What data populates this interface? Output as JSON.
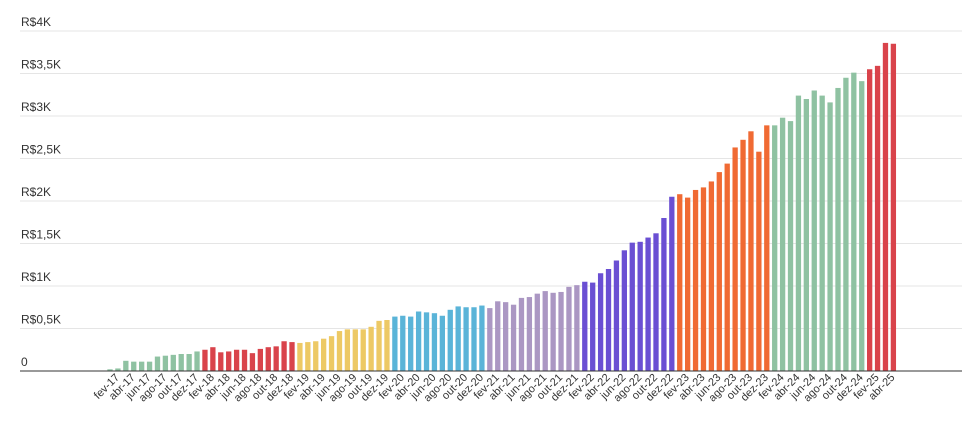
{
  "chart_data": {
    "type": "bar",
    "title": "",
    "xlabel": "",
    "ylabel": "",
    "ylim": [
      0,
      4000
    ],
    "grid": true,
    "legend": "none",
    "yticks": [
      {
        "value": 0,
        "label": "0"
      },
      {
        "value": 500,
        "label": "R$0,5K"
      },
      {
        "value": 1000,
        "label": "R$1K"
      },
      {
        "value": 1500,
        "label": "R$1,5K"
      },
      {
        "value": 2000,
        "label": "R$2K"
      },
      {
        "value": 2500,
        "label": "R$2,5K"
      },
      {
        "value": 3000,
        "label": "R$3K"
      },
      {
        "value": 3500,
        "label": "R$3,5K"
      },
      {
        "value": 4000,
        "label": "R$4K"
      }
    ],
    "year_colors": {
      "2017": "#8fc2a2",
      "2018": "#d9434b",
      "2019": "#edc965",
      "2020": "#5ab4d8",
      "2021": "#ab97c3",
      "2022": "#6a4fd3",
      "2023": "#f06a33",
      "2024": "#8fc2a2",
      "2025": "#d9434b"
    },
    "categories": [
      "jan-17",
      "fev-17",
      "mar-17",
      "abr-17",
      "mai-17",
      "jun-17",
      "jul-17",
      "ago-17",
      "set-17",
      "out-17",
      "nov-17",
      "dez-17",
      "jan-18",
      "fev-18",
      "mar-18",
      "abr-18",
      "mai-18",
      "jun-18",
      "jul-18",
      "ago-18",
      "set-18",
      "out-18",
      "nov-18",
      "dez-18",
      "jan-19",
      "fev-19",
      "mar-19",
      "abr-19",
      "mai-19",
      "jun-19",
      "jul-19",
      "ago-19",
      "set-19",
      "out-19",
      "nov-19",
      "dez-19",
      "jan-20",
      "fev-20",
      "mar-20",
      "abr-20",
      "mai-20",
      "jun-20",
      "jul-20",
      "ago-20",
      "set-20",
      "out-20",
      "nov-20",
      "dez-20",
      "jan-21",
      "fev-21",
      "mar-21",
      "abr-21",
      "mai-21",
      "jun-21",
      "jul-21",
      "ago-21",
      "set-21",
      "out-21",
      "nov-21",
      "dez-21",
      "jan-22",
      "fev-22",
      "mar-22",
      "abr-22",
      "mai-22",
      "jun-22",
      "jul-22",
      "ago-22",
      "set-22",
      "out-22",
      "nov-22",
      "dez-22",
      "jan-23",
      "fev-23",
      "mar-23",
      "abr-23",
      "mai-23",
      "jun-23",
      "jul-23",
      "ago-23",
      "set-23",
      "out-23",
      "nov-23",
      "dez-23",
      "jan-24",
      "fev-24",
      "mar-24",
      "abr-24",
      "mai-24",
      "jun-24",
      "jul-24",
      "ago-24",
      "set-24",
      "out-24",
      "nov-24",
      "dez-24",
      "jan-25",
      "fev-25",
      "mar-25",
      "abr-25"
    ],
    "x_tick_labels": [
      "fev-17",
      "abr-17",
      "jun-17",
      "ago-17",
      "out-17",
      "dez-17",
      "fev-18",
      "abr-18",
      "jun-18",
      "ago-18",
      "out-18",
      "dez-18",
      "fev-19",
      "abr-19",
      "jun-19",
      "ago-19",
      "out-19",
      "dez-19",
      "fev-20",
      "abr-20",
      "jun-20",
      "ago-20",
      "out-20",
      "dez-20",
      "fev-21",
      "abr-21",
      "jun-21",
      "ago-21",
      "out-21",
      "dez-21",
      "fev-22",
      "abr-22",
      "jun-22",
      "ago-22",
      "out-22",
      "dez-22",
      "fev-23",
      "abr-23",
      "jun-23",
      "ago-23",
      "out-23",
      "dez-23",
      "fev-24",
      "abr-24",
      "jun-24",
      "ago-24",
      "out-24",
      "dez-24",
      "fev-25",
      "abr-25"
    ],
    "values": [
      20,
      30,
      120,
      110,
      110,
      110,
      170,
      180,
      190,
      200,
      200,
      230,
      250,
      280,
      220,
      230,
      250,
      250,
      210,
      260,
      280,
      290,
      350,
      340,
      330,
      340,
      350,
      380,
      410,
      470,
      490,
      490,
      490,
      520,
      590,
      600,
      640,
      650,
      640,
      700,
      690,
      680,
      650,
      720,
      760,
      750,
      750,
      770,
      740,
      820,
      810,
      780,
      860,
      870,
      910,
      940,
      920,
      930,
      990,
      1010,
      1050,
      1040,
      1150,
      1200,
      1300,
      1420,
      1510,
      1520,
      1570,
      1620,
      1800,
      2050,
      2080,
      2040,
      2130,
      2160,
      2230,
      2340,
      2440,
      2630,
      2720,
      2820,
      2580,
      2890,
      2890,
      2980,
      2940,
      3240,
      3200,
      3300,
      3240,
      3160,
      3330,
      3450,
      3510,
      3410,
      3550,
      3590,
      3860,
      3850
    ]
  }
}
